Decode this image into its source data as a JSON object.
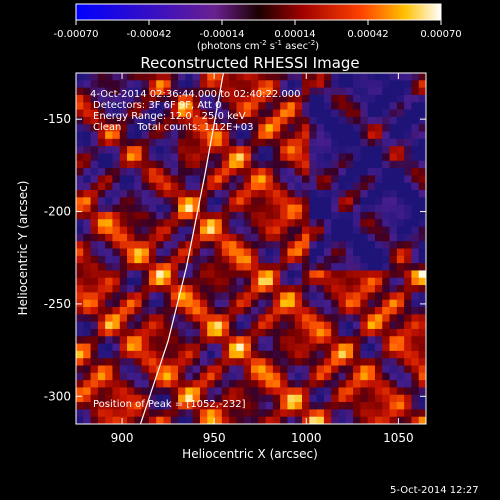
{
  "colorbar": {
    "ticks": [
      "-0.00070",
      "-0.00042",
      "-0.00014",
      "0.00014",
      "0.00042",
      "0.00070"
    ],
    "units_main": "(photons cm",
    "units_exp1": "-2",
    "units_mid": " s",
    "units_exp2": "-1",
    "units_mid2": " asec",
    "units_exp3": "-2",
    "units_end": ")"
  },
  "annotations": {
    "time_range": "4-Oct-2014 02:36:44.000 to 02:40:22.000",
    "detectors": "Detectors: 3F 6F 9F, Att 0",
    "energy": "Energy Range: 12.0 - 25.0 keV",
    "method": "Clean     Total counts: 1.12E+03",
    "peak": "Position of Peak = [1052,-232]"
  },
  "footer": {
    "timestamp": "5-Oct-2014 12:27"
  },
  "chart_data": {
    "type": "heatmap",
    "title": "Reconstructed RHESSI Image",
    "xlabel": "Heliocentric X (arcsec)",
    "ylabel": "Heliocentric Y (arcsec)",
    "xlim": [
      875,
      1065
    ],
    "ylim": [
      -315,
      -125
    ],
    "x_ticks": [
      900,
      950,
      1000,
      1050
    ],
    "y_ticks": [
      -150,
      -200,
      -250,
      -300
    ],
    "colorbar_range": [
      -0.0007,
      0.0007
    ],
    "peak": [
      1052,
      -232
    ],
    "limb_curve": [
      [
        910,
        -315
      ],
      [
        925,
        -270
      ],
      [
        935,
        -230
      ],
      [
        945,
        -180
      ],
      [
        955,
        -125
      ]
    ]
  }
}
